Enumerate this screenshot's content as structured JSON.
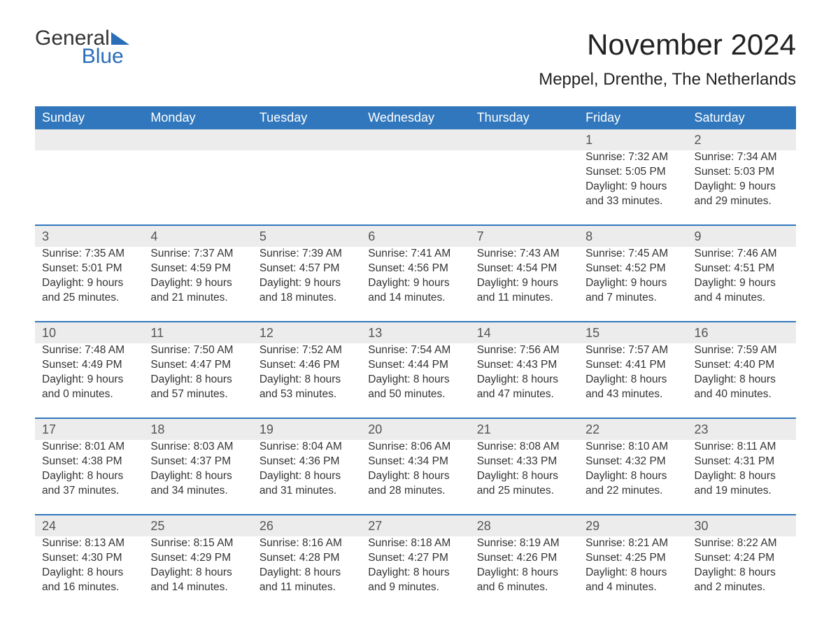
{
  "logo": {
    "word1": "General",
    "word2": "Blue"
  },
  "title": "November 2024",
  "location": "Meppel, Drenthe, The Netherlands",
  "colors": {
    "header_bg": "#3077bd",
    "header_text": "#ffffff",
    "daynum_bg": "#ececec",
    "row_border": "#3077bd",
    "body_text": "#333333",
    "logo_blue": "#2a6db8"
  },
  "weekdays": [
    "Sunday",
    "Monday",
    "Tuesday",
    "Wednesday",
    "Thursday",
    "Friday",
    "Saturday"
  ],
  "weeks": [
    [
      null,
      null,
      null,
      null,
      null,
      {
        "n": "1",
        "sunrise": "Sunrise: 7:32 AM",
        "sunset": "Sunset: 5:05 PM",
        "d1": "Daylight: 9 hours",
        "d2": "and 33 minutes."
      },
      {
        "n": "2",
        "sunrise": "Sunrise: 7:34 AM",
        "sunset": "Sunset: 5:03 PM",
        "d1": "Daylight: 9 hours",
        "d2": "and 29 minutes."
      }
    ],
    [
      {
        "n": "3",
        "sunrise": "Sunrise: 7:35 AM",
        "sunset": "Sunset: 5:01 PM",
        "d1": "Daylight: 9 hours",
        "d2": "and 25 minutes."
      },
      {
        "n": "4",
        "sunrise": "Sunrise: 7:37 AM",
        "sunset": "Sunset: 4:59 PM",
        "d1": "Daylight: 9 hours",
        "d2": "and 21 minutes."
      },
      {
        "n": "5",
        "sunrise": "Sunrise: 7:39 AM",
        "sunset": "Sunset: 4:57 PM",
        "d1": "Daylight: 9 hours",
        "d2": "and 18 minutes."
      },
      {
        "n": "6",
        "sunrise": "Sunrise: 7:41 AM",
        "sunset": "Sunset: 4:56 PM",
        "d1": "Daylight: 9 hours",
        "d2": "and 14 minutes."
      },
      {
        "n": "7",
        "sunrise": "Sunrise: 7:43 AM",
        "sunset": "Sunset: 4:54 PM",
        "d1": "Daylight: 9 hours",
        "d2": "and 11 minutes."
      },
      {
        "n": "8",
        "sunrise": "Sunrise: 7:45 AM",
        "sunset": "Sunset: 4:52 PM",
        "d1": "Daylight: 9 hours",
        "d2": "and 7 minutes."
      },
      {
        "n": "9",
        "sunrise": "Sunrise: 7:46 AM",
        "sunset": "Sunset: 4:51 PM",
        "d1": "Daylight: 9 hours",
        "d2": "and 4 minutes."
      }
    ],
    [
      {
        "n": "10",
        "sunrise": "Sunrise: 7:48 AM",
        "sunset": "Sunset: 4:49 PM",
        "d1": "Daylight: 9 hours",
        "d2": "and 0 minutes."
      },
      {
        "n": "11",
        "sunrise": "Sunrise: 7:50 AM",
        "sunset": "Sunset: 4:47 PM",
        "d1": "Daylight: 8 hours",
        "d2": "and 57 minutes."
      },
      {
        "n": "12",
        "sunrise": "Sunrise: 7:52 AM",
        "sunset": "Sunset: 4:46 PM",
        "d1": "Daylight: 8 hours",
        "d2": "and 53 minutes."
      },
      {
        "n": "13",
        "sunrise": "Sunrise: 7:54 AM",
        "sunset": "Sunset: 4:44 PM",
        "d1": "Daylight: 8 hours",
        "d2": "and 50 minutes."
      },
      {
        "n": "14",
        "sunrise": "Sunrise: 7:56 AM",
        "sunset": "Sunset: 4:43 PM",
        "d1": "Daylight: 8 hours",
        "d2": "and 47 minutes."
      },
      {
        "n": "15",
        "sunrise": "Sunrise: 7:57 AM",
        "sunset": "Sunset: 4:41 PM",
        "d1": "Daylight: 8 hours",
        "d2": "and 43 minutes."
      },
      {
        "n": "16",
        "sunrise": "Sunrise: 7:59 AM",
        "sunset": "Sunset: 4:40 PM",
        "d1": "Daylight: 8 hours",
        "d2": "and 40 minutes."
      }
    ],
    [
      {
        "n": "17",
        "sunrise": "Sunrise: 8:01 AM",
        "sunset": "Sunset: 4:38 PM",
        "d1": "Daylight: 8 hours",
        "d2": "and 37 minutes."
      },
      {
        "n": "18",
        "sunrise": "Sunrise: 8:03 AM",
        "sunset": "Sunset: 4:37 PM",
        "d1": "Daylight: 8 hours",
        "d2": "and 34 minutes."
      },
      {
        "n": "19",
        "sunrise": "Sunrise: 8:04 AM",
        "sunset": "Sunset: 4:36 PM",
        "d1": "Daylight: 8 hours",
        "d2": "and 31 minutes."
      },
      {
        "n": "20",
        "sunrise": "Sunrise: 8:06 AM",
        "sunset": "Sunset: 4:34 PM",
        "d1": "Daylight: 8 hours",
        "d2": "and 28 minutes."
      },
      {
        "n": "21",
        "sunrise": "Sunrise: 8:08 AM",
        "sunset": "Sunset: 4:33 PM",
        "d1": "Daylight: 8 hours",
        "d2": "and 25 minutes."
      },
      {
        "n": "22",
        "sunrise": "Sunrise: 8:10 AM",
        "sunset": "Sunset: 4:32 PM",
        "d1": "Daylight: 8 hours",
        "d2": "and 22 minutes."
      },
      {
        "n": "23",
        "sunrise": "Sunrise: 8:11 AM",
        "sunset": "Sunset: 4:31 PM",
        "d1": "Daylight: 8 hours",
        "d2": "and 19 minutes."
      }
    ],
    [
      {
        "n": "24",
        "sunrise": "Sunrise: 8:13 AM",
        "sunset": "Sunset: 4:30 PM",
        "d1": "Daylight: 8 hours",
        "d2": "and 16 minutes."
      },
      {
        "n": "25",
        "sunrise": "Sunrise: 8:15 AM",
        "sunset": "Sunset: 4:29 PM",
        "d1": "Daylight: 8 hours",
        "d2": "and 14 minutes."
      },
      {
        "n": "26",
        "sunrise": "Sunrise: 8:16 AM",
        "sunset": "Sunset: 4:28 PM",
        "d1": "Daylight: 8 hours",
        "d2": "and 11 minutes."
      },
      {
        "n": "27",
        "sunrise": "Sunrise: 8:18 AM",
        "sunset": "Sunset: 4:27 PM",
        "d1": "Daylight: 8 hours",
        "d2": "and 9 minutes."
      },
      {
        "n": "28",
        "sunrise": "Sunrise: 8:19 AM",
        "sunset": "Sunset: 4:26 PM",
        "d1": "Daylight: 8 hours",
        "d2": "and 6 minutes."
      },
      {
        "n": "29",
        "sunrise": "Sunrise: 8:21 AM",
        "sunset": "Sunset: 4:25 PM",
        "d1": "Daylight: 8 hours",
        "d2": "and 4 minutes."
      },
      {
        "n": "30",
        "sunrise": "Sunrise: 8:22 AM",
        "sunset": "Sunset: 4:24 PM",
        "d1": "Daylight: 8 hours",
        "d2": "and 2 minutes."
      }
    ]
  ]
}
